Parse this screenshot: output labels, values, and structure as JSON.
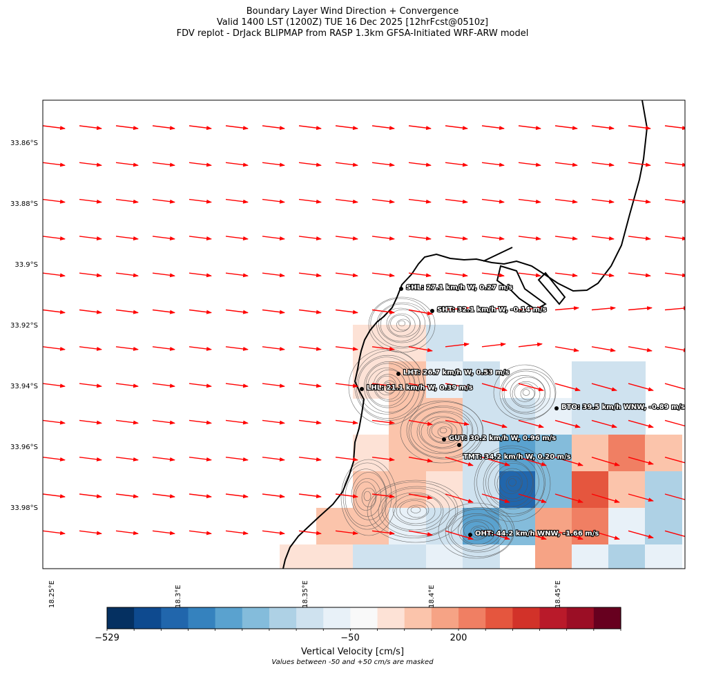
{
  "title": {
    "line1": "Boundary Layer Wind Direction + Convergence",
    "line2": "Valid 1400 LST (1200Z) TUE 16 Dec 2025 [12hrFcst@0510z]",
    "line3": "FDV replot - DrJack BLIPMAP from RASP 1.3km GFSA-Initiated WRF-ARW model"
  },
  "axes": {
    "y_ticks": [
      "33.86°S",
      "33.88°S",
      "33.9°S",
      "33.92°S",
      "33.94°S",
      "33.96°S",
      "33.98°S"
    ],
    "x_ticks": [
      "18.25°E",
      "18.3°E",
      "18.35°E",
      "18.4°E",
      "18.45°E"
    ]
  },
  "stations": [
    {
      "code": "SHL",
      "label": "SHL: 27.1 km/h W, 0.27 m/s"
    },
    {
      "code": "SHT",
      "label": "SHT: 32.1 km/h W, -0.14 m/s"
    },
    {
      "code": "LHT",
      "label": "LHT: 26.7 km/h W, 0.53 m/s"
    },
    {
      "code": "LHL",
      "label": "LHL: 21.1 km/h W, 0.39 m/s"
    },
    {
      "code": "BTO",
      "label": "BTO: 39.5 km/h WNW, -0.89 m/s"
    },
    {
      "code": "GUT",
      "label": "GUT: 30.2 km/h W, 0.96 m/s"
    },
    {
      "code": "TMT",
      "label": "TMT: 34.2 km/h W, 0.20 m/s"
    },
    {
      "code": "OHT",
      "label": "OHT: 44.2 km/h WNW, -1.66 m/s"
    }
  ],
  "colorbar": {
    "tick_min": "−529",
    "tick_mid": "−50",
    "tick_high": "200",
    "label": "Vertical Velocity [cm/s]",
    "note": "Values between -50 and +50 cm/s are masked",
    "colors": [
      "#053061",
      "#0e4a8f",
      "#2166ac",
      "#3582be",
      "#5aa2cf",
      "#84bcdb",
      "#aed1e5",
      "#cfe2ef",
      "#e8f1f8",
      "#f9f9f9",
      "#fde2d6",
      "#fbc4ab",
      "#f6a385",
      "#f07f63",
      "#e5563e",
      "#d23229",
      "#b91a2a",
      "#9b0e25",
      "#67001f"
    ]
  },
  "wind_vector_color": "#ff0000"
}
